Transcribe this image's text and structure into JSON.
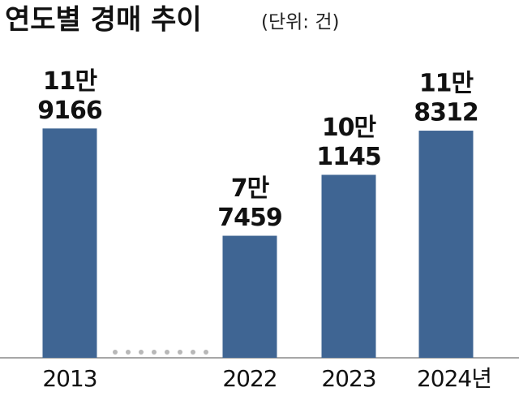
{
  "chart_data": {
    "type": "bar",
    "title": "연도별 경매 추이",
    "subtitle": "(단위: 건)",
    "categories": [
      "2013",
      "2022",
      "2023",
      "2024년"
    ],
    "values": [
      119166,
      77459,
      101145,
      118312
    ],
    "value_labels": [
      [
        "11만",
        "9166"
      ],
      [
        "7만",
        "7459"
      ],
      [
        "10만",
        "1145"
      ],
      [
        "11만",
        "8312"
      ]
    ],
    "color": "#3f6593",
    "ylim": [
      30000,
      130000
    ]
  }
}
